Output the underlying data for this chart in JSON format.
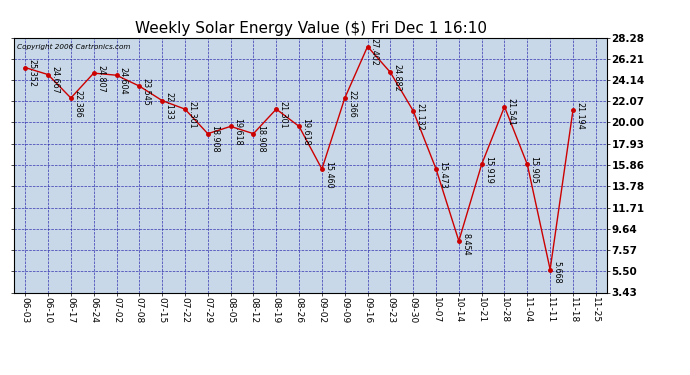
{
  "title": "Weekly Solar Energy Value ($) Fri Dec 1 16:10",
  "copyright": "Copyright 2006 Cartronics.com",
  "x_labels": [
    "06-03",
    "06-10",
    "06-17",
    "06-24",
    "07-02",
    "07-08",
    "07-15",
    "07-22",
    "07-29",
    "08-05",
    "08-12",
    "08-19",
    "08-26",
    "09-02",
    "09-09",
    "09-16",
    "09-23",
    "09-30",
    "10-07",
    "10-14",
    "10-21",
    "10-28",
    "11-04",
    "11-11",
    "11-18",
    "11-25"
  ],
  "series_x": [
    0,
    1,
    2,
    3,
    4,
    5,
    6,
    7,
    8,
    9,
    10,
    11,
    12,
    13,
    14,
    15,
    16,
    17,
    18,
    19,
    20,
    21,
    22,
    23,
    24,
    25
  ],
  "series_y": [
    25.352,
    24.667,
    22.386,
    24.807,
    24.604,
    23.545,
    22.133,
    21.301,
    18.908,
    19.618,
    18.908,
    21.301,
    19.618,
    15.46,
    22.366,
    27.402,
    24.882,
    21.132,
    15.473,
    8.454,
    15.919,
    21.541,
    15.905,
    5.668,
    21.194,
    null
  ],
  "annotations": [
    [
      0,
      25.352,
      "25.352"
    ],
    [
      1,
      24.667,
      "24.667"
    ],
    [
      2,
      22.386,
      "22.386"
    ],
    [
      3,
      24.807,
      "24.807"
    ],
    [
      4,
      24.604,
      "24.604"
    ],
    [
      5,
      23.545,
      "23.545"
    ],
    [
      6,
      22.133,
      "22.133"
    ],
    [
      7,
      21.301,
      "21.301"
    ],
    [
      8,
      18.908,
      "18.908"
    ],
    [
      9,
      19.618,
      "19.618"
    ],
    [
      10,
      18.908,
      "18.908"
    ],
    [
      11,
      21.301,
      "21.301"
    ],
    [
      12,
      19.618,
      "19.618"
    ],
    [
      13,
      15.46,
      "15.460"
    ],
    [
      14,
      22.366,
      "22.366"
    ],
    [
      15,
      27.402,
      "27.402"
    ],
    [
      16,
      24.882,
      "24.882"
    ],
    [
      17,
      21.132,
      "21.132"
    ],
    [
      18,
      15.473,
      "15.473"
    ],
    [
      19,
      8.454,
      "8.454"
    ],
    [
      20,
      15.919,
      "15.919"
    ],
    [
      21,
      21.541,
      "21.541"
    ],
    [
      22,
      15.905,
      "15.905"
    ],
    [
      23,
      5.668,
      "5.668"
    ],
    [
      24,
      21.194,
      "21.194"
    ]
  ],
  "ylim": [
    3.43,
    28.28
  ],
  "yticks": [
    3.43,
    5.5,
    7.57,
    9.64,
    11.71,
    13.78,
    15.86,
    17.93,
    20.0,
    22.07,
    24.14,
    26.21,
    28.28
  ],
  "bg_color": "#c8d8e8",
  "line_color": "#cc0000",
  "marker_color": "#cc0000",
  "grid_color": "#2222aa",
  "title_fontsize": 11,
  "anno_fontsize": 5.8,
  "tick_fontsize": 6.5,
  "ytick_fontsize": 7.5
}
